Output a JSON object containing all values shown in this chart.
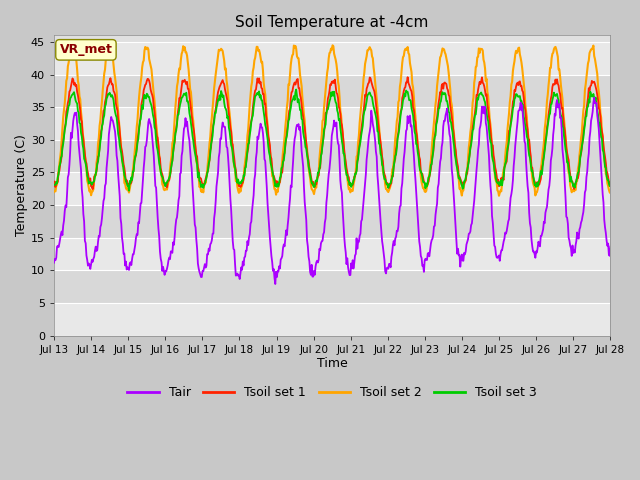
{
  "title": "Soil Temperature at -4cm",
  "xlabel": "Time",
  "ylabel": "Temperature (C)",
  "ylim": [
    0,
    46
  ],
  "yticks": [
    0,
    5,
    10,
    15,
    20,
    25,
    30,
    35,
    40,
    45
  ],
  "annotation_text": "VR_met",
  "annotation_color": "#8B0000",
  "annotation_bg": "#FFFFCC",
  "fig_bg": "#C8C8C8",
  "plot_bg_light": "#E8E8E8",
  "plot_bg_dark": "#D0D0D0",
  "grid_color": "#FFFFFF",
  "line_colors": {
    "Tair": "#AA00FF",
    "Tsoil1": "#FF2200",
    "Tsoil2": "#FFA500",
    "Tsoil3": "#00CC00"
  },
  "line_widths": {
    "Tair": 1.3,
    "Tsoil1": 1.3,
    "Tsoil2": 1.5,
    "Tsoil3": 1.3
  },
  "x_tick_labels": [
    "Jul 13",
    "Jul 14",
    "Jul 15",
    "Jul 16",
    "Jul 17",
    "Jul 18",
    "Jul 19",
    "Jul 20",
    "Jul 21",
    "Jul 22",
    "Jul 23",
    "Jul 24",
    "Jul 25",
    "Jul 26",
    "Jul 27",
    "Jul 28"
  ],
  "days": 15,
  "n_points": 720,
  "Tair_mean": 21,
  "Tair_amp": 11,
  "Tsoil1_mean": 31,
  "Tsoil1_amp": 8,
  "Tsoil2_mean": 33,
  "Tsoil2_amp": 11,
  "Tsoil3_mean": 30,
  "Tsoil3_amp": 7
}
